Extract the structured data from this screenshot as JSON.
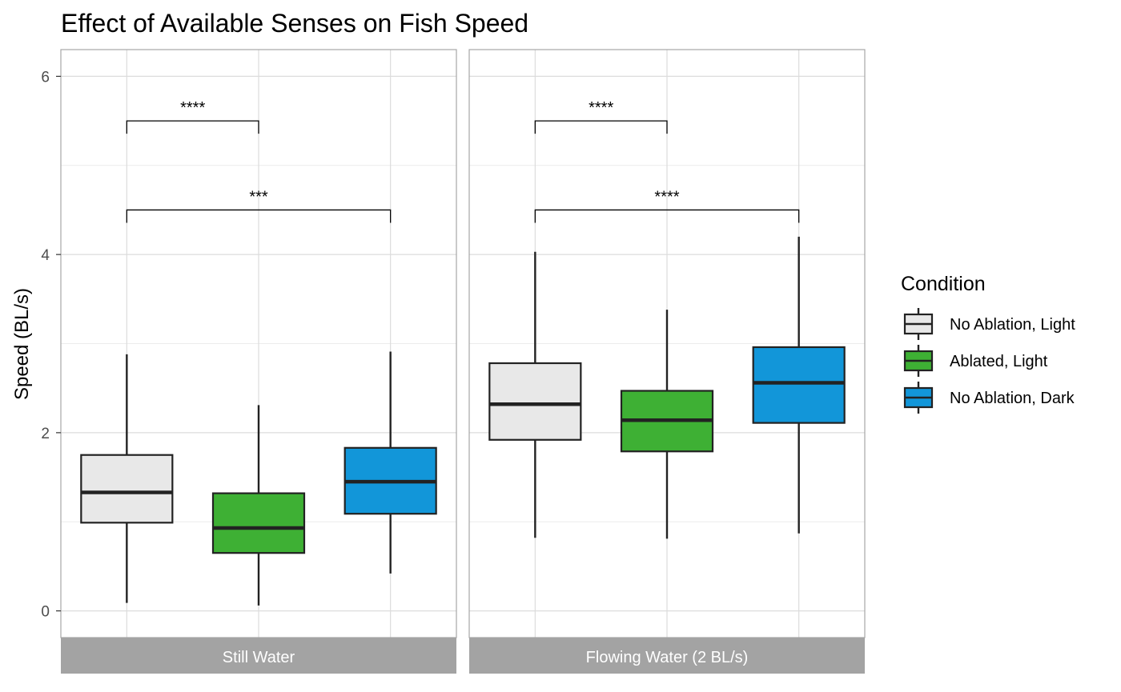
{
  "chart_data": {
    "type": "boxplot",
    "title": "Effect of Available Senses on Fish Speed",
    "xlabel": "",
    "ylabel": "Speed (BL/s)",
    "ylim": [
      -0.3,
      6.3
    ],
    "yticks": [
      0,
      2,
      4,
      6
    ],
    "grid": true,
    "legend": {
      "title": "Condition",
      "position": "right",
      "entries": [
        {
          "name": "No Ablation, Light",
          "color": "#e8e8e8"
        },
        {
          "name": "Ablated, Light",
          "color": "#3eb034"
        },
        {
          "name": "No Ablation, Dark",
          "color": "#1296d9"
        }
      ]
    },
    "facets": [
      {
        "label": "Still Water",
        "boxes": [
          {
            "condition": "No Ablation, Light",
            "min": 0.09,
            "q1": 0.99,
            "median": 1.33,
            "q3": 1.75,
            "max": 2.88
          },
          {
            "condition": "Ablated, Light",
            "min": 0.06,
            "q1": 0.65,
            "median": 0.93,
            "q3": 1.32,
            "max": 2.31
          },
          {
            "condition": "No Ablation, Dark",
            "min": 0.42,
            "q1": 1.09,
            "median": 1.45,
            "q3": 1.83,
            "max": 2.91
          }
        ],
        "comparisons": [
          {
            "from": 0,
            "to": 1,
            "y": 5.5,
            "label": "****"
          },
          {
            "from": 0,
            "to": 2,
            "y": 4.5,
            "label": "***"
          }
        ]
      },
      {
        "label": "Flowing Water (2 BL/s)",
        "boxes": [
          {
            "condition": "No Ablation, Light",
            "min": 0.82,
            "q1": 1.92,
            "median": 2.32,
            "q3": 2.78,
            "max": 4.03
          },
          {
            "condition": "Ablated, Light",
            "min": 0.81,
            "q1": 1.79,
            "median": 2.14,
            "q3": 2.47,
            "max": 3.38
          },
          {
            "condition": "No Ablation, Dark",
            "min": 0.87,
            "q1": 2.11,
            "median": 2.56,
            "q3": 2.96,
            "max": 4.2
          }
        ],
        "comparisons": [
          {
            "from": 0,
            "to": 1,
            "y": 5.5,
            "label": "****"
          },
          {
            "from": 0,
            "to": 2,
            "y": 4.5,
            "label": "****"
          }
        ]
      }
    ]
  }
}
